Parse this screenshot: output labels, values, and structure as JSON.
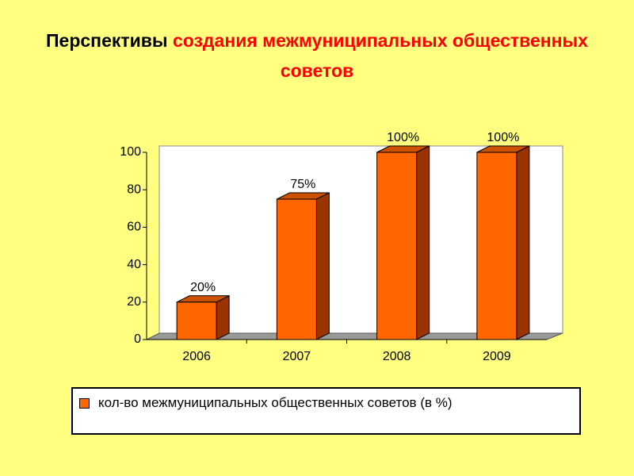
{
  "chart_data": {
    "type": "bar3d",
    "title": [
      "Перспективы",
      "создания межмуниципальных общественных советов"
    ],
    "title_colors": [
      "#000000",
      "#ff0000"
    ],
    "categories": [
      "2006",
      "2007",
      "2008",
      "2009"
    ],
    "series": [
      {
        "name": "кол-во межмуниципальных общественных советов (в %)",
        "color": "#ff6600",
        "values": [
          20,
          75,
          100,
          100
        ],
        "value_labels": [
          "20%",
          "75%",
          "100%",
          "100%"
        ]
      }
    ],
    "ylim": [
      0,
      100
    ],
    "yticks": [
      0,
      20,
      40,
      60,
      80,
      100
    ]
  }
}
